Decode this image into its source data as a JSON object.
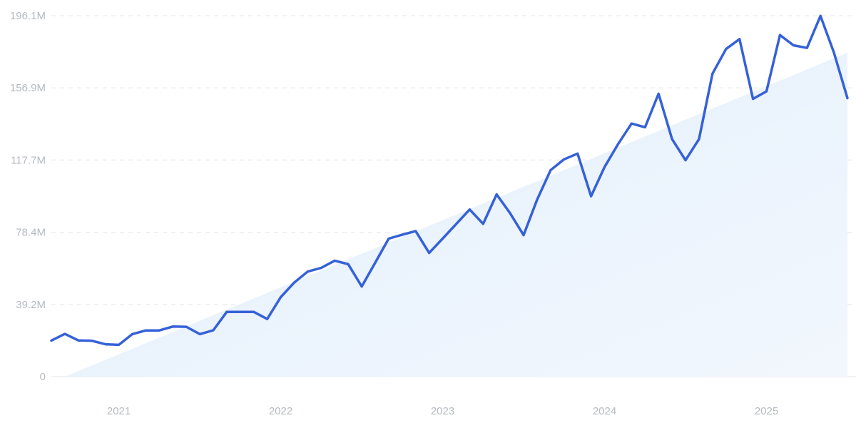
{
  "chart_data": {
    "type": "line",
    "title": "",
    "xlabel": "",
    "ylabel": "",
    "grid": true,
    "legend": "none",
    "ylim": [
      0,
      196.1
    ],
    "y_ticks": [
      {
        "value": 0,
        "label": "0"
      },
      {
        "value": 39.2,
        "label": "39.2M"
      },
      {
        "value": 78.4,
        "label": "78.4M"
      },
      {
        "value": 117.7,
        "label": "117.7M"
      },
      {
        "value": 156.9,
        "label": "156.9M"
      },
      {
        "value": 196.1,
        "label": "196.1M"
      }
    ],
    "x_ticks": [
      {
        "date": "2021-01",
        "label": "2021"
      },
      {
        "date": "2022-01",
        "label": "2022"
      },
      {
        "date": "2023-01",
        "label": "2023"
      },
      {
        "date": "2024-01",
        "label": "2024"
      },
      {
        "date": "2025-01",
        "label": "2025"
      }
    ],
    "xlim": [
      "2020-08",
      "2025-07"
    ],
    "colors": {
      "line": "#3561d8",
      "trend_fill": "#e3effc",
      "trend_fill_end": "#f2f7fd"
    },
    "trend": {
      "x": [
        "2020-09",
        "2025-07"
      ],
      "y": [
        0,
        176
      ]
    },
    "series": [
      {
        "x": [
          "2020-08",
          "2020-09",
          "2020-10",
          "2020-11",
          "2020-12",
          "2021-01",
          "2021-02",
          "2021-03",
          "2021-04",
          "2021-05",
          "2021-06",
          "2021-07",
          "2021-08",
          "2021-09",
          "2021-10",
          "2021-11",
          "2021-12",
          "2022-01",
          "2022-02",
          "2022-03",
          "2022-04",
          "2022-05",
          "2022-06",
          "2022-07",
          "2022-08",
          "2022-09",
          "2022-10",
          "2022-11",
          "2022-12",
          "2023-01",
          "2023-02",
          "2023-03",
          "2023-04",
          "2023-05",
          "2023-06",
          "2023-07",
          "2023-08",
          "2023-09",
          "2023-10",
          "2023-11",
          "2023-12",
          "2024-01",
          "2024-02",
          "2024-03",
          "2024-04",
          "2024-05",
          "2024-06",
          "2024-07",
          "2024-08",
          "2024-09",
          "2024-10",
          "2024-11",
          "2024-12",
          "2025-01",
          "2025-02",
          "2025-03",
          "2025-04",
          "2025-05",
          "2025-06",
          "2025-07"
        ],
        "values": [
          19.6,
          23.2,
          19.7,
          19.5,
          17.6,
          17.3,
          23.1,
          25.1,
          25.1,
          27.2,
          27.1,
          23.1,
          25.2,
          35.2,
          35.2,
          35.2,
          31.3,
          43.2,
          51.1,
          57.1,
          59.1,
          63.0,
          61.1,
          49.0,
          61.9,
          75.0,
          77.1,
          79.1,
          67.2,
          75.0,
          82.9,
          90.8,
          83.0,
          99.0,
          88.8,
          76.9,
          96.1,
          112.2,
          118.1,
          121.2,
          98.0,
          113.9,
          126.3,
          137.5,
          135.5,
          153.7,
          129.1,
          117.6,
          129.0,
          164.6,
          178.0,
          183.4,
          150.9,
          155.0,
          185.6,
          180.0,
          178.6,
          196.0,
          176.0,
          151.3
        ]
      }
    ]
  }
}
